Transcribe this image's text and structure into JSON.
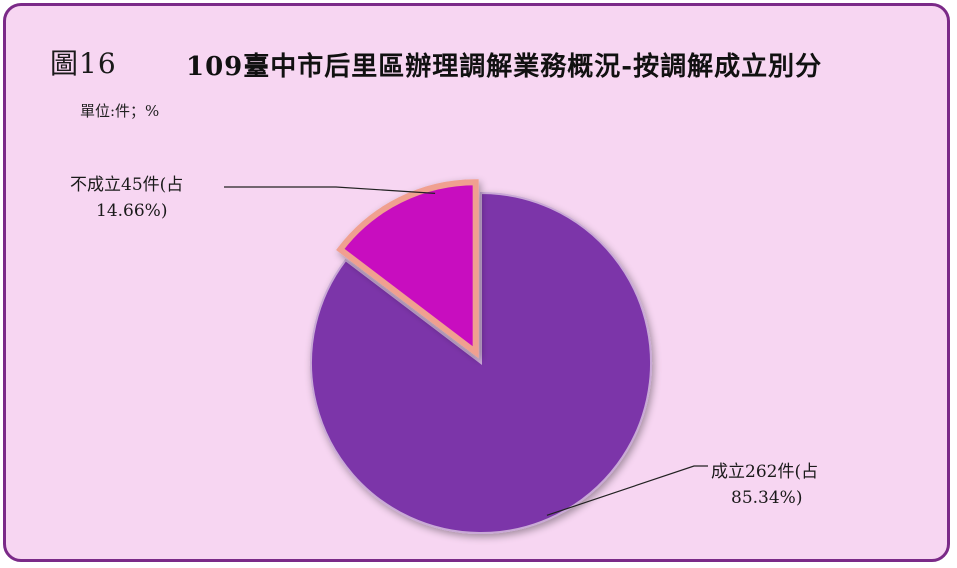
{
  "figure_label": "圖16",
  "title": "109臺中市后里區辦理調解業務概況-按調解成立別分",
  "unit": "單位:件；%",
  "colors": {
    "background": "#f7d6f2",
    "border": "#7b2a88",
    "slice_established": "#7b35a9",
    "slice_not_established": "#c80fbf",
    "slice_outline_not_established": "#f0a090"
  },
  "chart_data": {
    "type": "pie",
    "title": "109臺中市后里區辦理調解業務概況-按調解成立別分",
    "unit": "單位:件；%",
    "slices": [
      {
        "name": "成立",
        "value": 262,
        "percent": 85.34,
        "label_line1": "成立262件(占",
        "label_line2": "85.34%)",
        "color": "#7b35a9",
        "exploded": false
      },
      {
        "name": "不成立",
        "value": 45,
        "percent": 14.66,
        "label_line1": "不成立45件(占",
        "label_line2": "14.66%)",
        "color": "#c80fbf",
        "exploded": true
      }
    ]
  }
}
